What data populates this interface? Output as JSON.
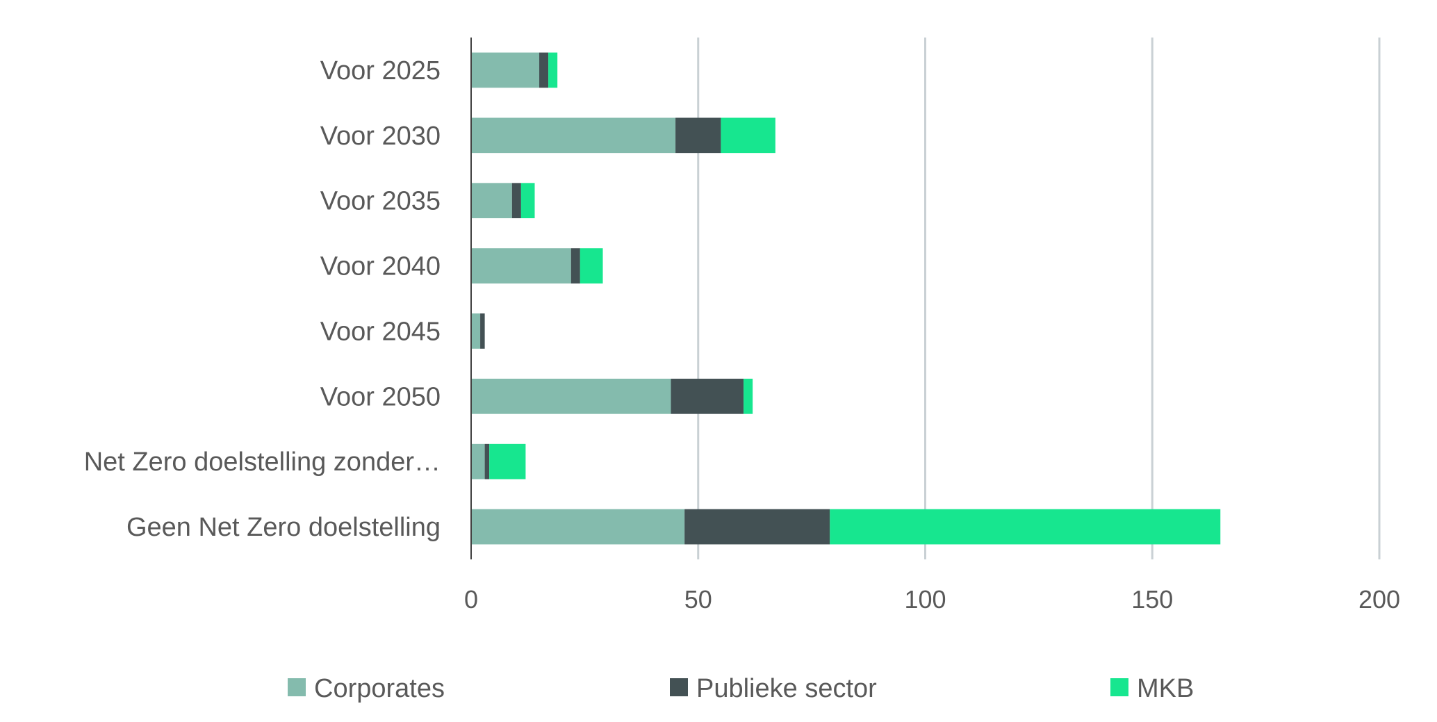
{
  "chart_data": {
    "type": "bar",
    "orientation": "horizontal",
    "stacked": true,
    "title": "",
    "xlabel": "",
    "ylabel": "",
    "xlim": [
      0,
      200
    ],
    "x_ticks": [
      0,
      50,
      100,
      150,
      200
    ],
    "grid": "vertical",
    "legend_position": "bottom",
    "categories": [
      "Voor 2025",
      "Voor 2030",
      "Voor 2035",
      "Voor 2040",
      "Voor 2045",
      "Voor 2050",
      "Net Zero doelstelling zonder…",
      "Geen Net Zero doelstelling"
    ],
    "series": [
      {
        "name": "Corporates",
        "color": "#84bbad",
        "values": [
          15,
          45,
          9,
          22,
          2,
          44,
          3,
          47
        ]
      },
      {
        "name": "Publieke sector",
        "color": "#435154",
        "values": [
          2,
          10,
          2,
          2,
          1,
          16,
          1,
          32
        ]
      },
      {
        "name": "MKB",
        "color": "#17e68f",
        "values": [
          2,
          12,
          3,
          5,
          0,
          2,
          8,
          86
        ]
      }
    ]
  }
}
